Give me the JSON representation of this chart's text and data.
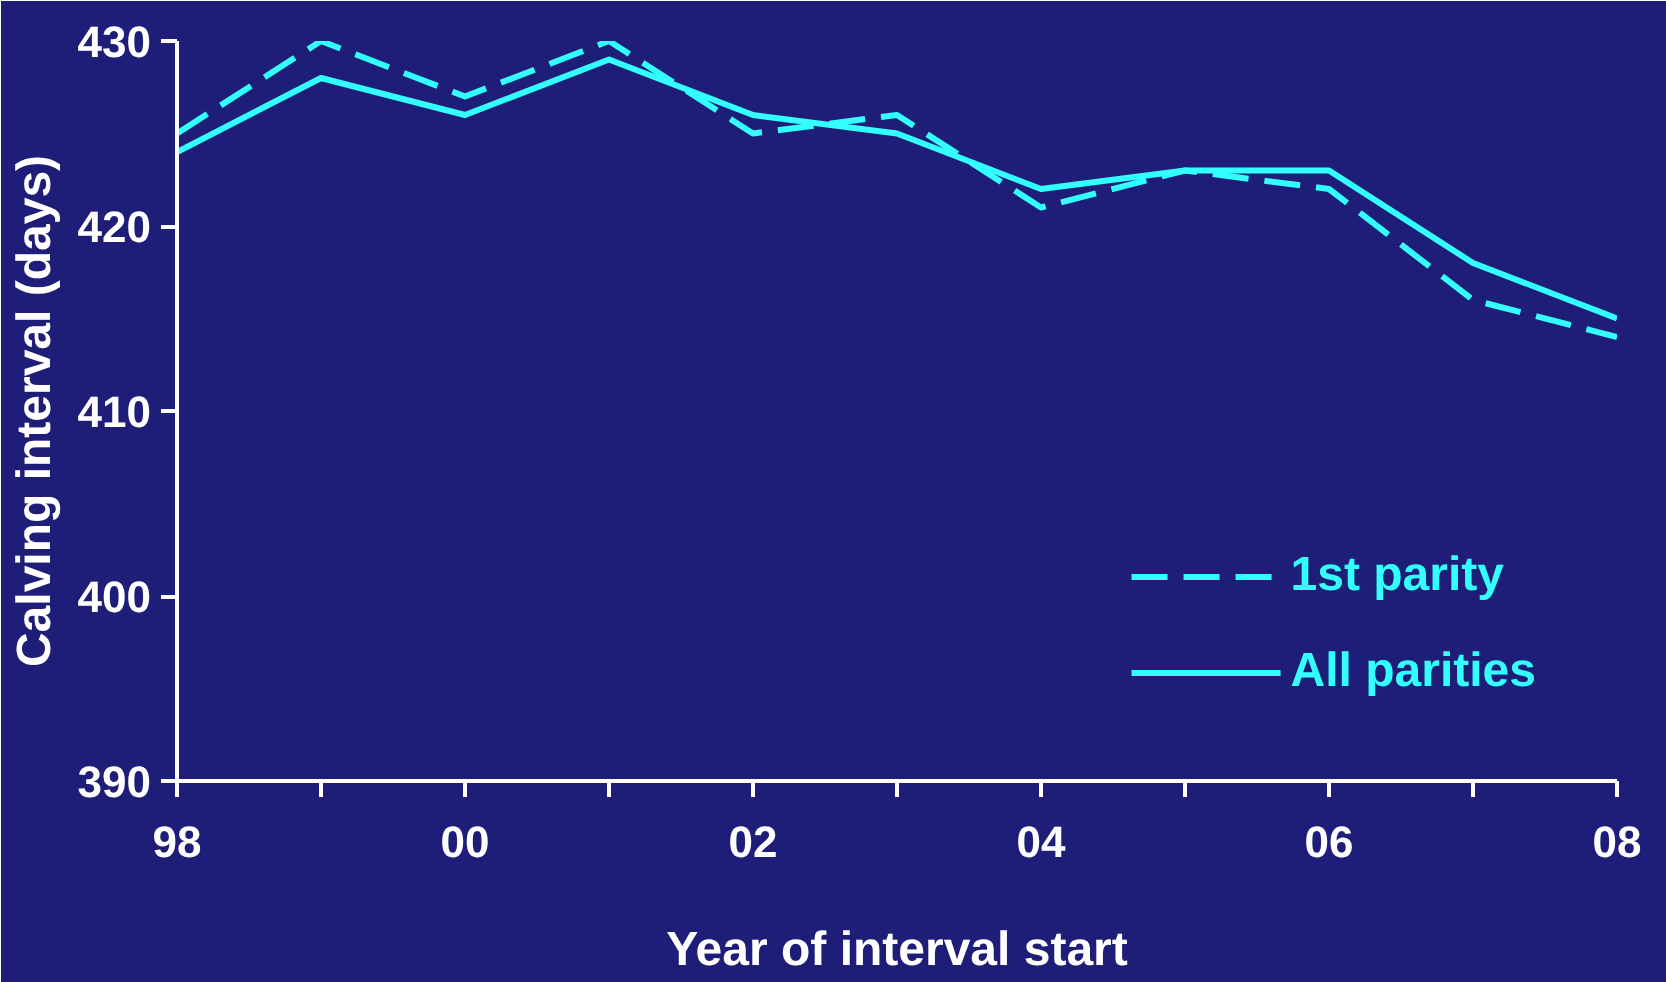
{
  "chart_data": {
    "type": "line",
    "xlabel": "Year of interval start",
    "ylabel": "Calving interval (days)",
    "x": [
      1998,
      1999,
      2000,
      2001,
      2002,
      2003,
      2004,
      2005,
      2006,
      2007,
      2008
    ],
    "series": [
      {
        "name": "1st parity",
        "color": "#33ffff",
        "line_style": "dashed",
        "values": [
          425,
          430,
          427,
          430,
          425,
          426,
          421,
          423,
          422,
          416,
          414
        ]
      },
      {
        "name": "All parities",
        "color": "#33ffff",
        "line_style": "solid",
        "values": [
          424,
          428,
          426,
          429,
          426,
          425,
          422,
          423,
          423,
          418,
          415
        ]
      }
    ],
    "xlim": [
      1998,
      2008
    ],
    "ylim": [
      390,
      430
    ],
    "xticks": [
      {
        "value": 1998,
        "label": "98"
      },
      {
        "value": 1999,
        "label": null
      },
      {
        "value": 2000,
        "label": "00"
      },
      {
        "value": 2001,
        "label": null
      },
      {
        "value": 2002,
        "label": "02"
      },
      {
        "value": 2003,
        "label": null
      },
      {
        "value": 2004,
        "label": "04"
      },
      {
        "value": 2005,
        "label": null
      },
      {
        "value": 2006,
        "label": "06"
      },
      {
        "value": 2007,
        "label": null
      },
      {
        "value": 2008,
        "label": "08"
      }
    ],
    "yticks": [
      390,
      400,
      410,
      420,
      430
    ],
    "grid": false,
    "legend": "bottom right",
    "marker": "none"
  }
}
